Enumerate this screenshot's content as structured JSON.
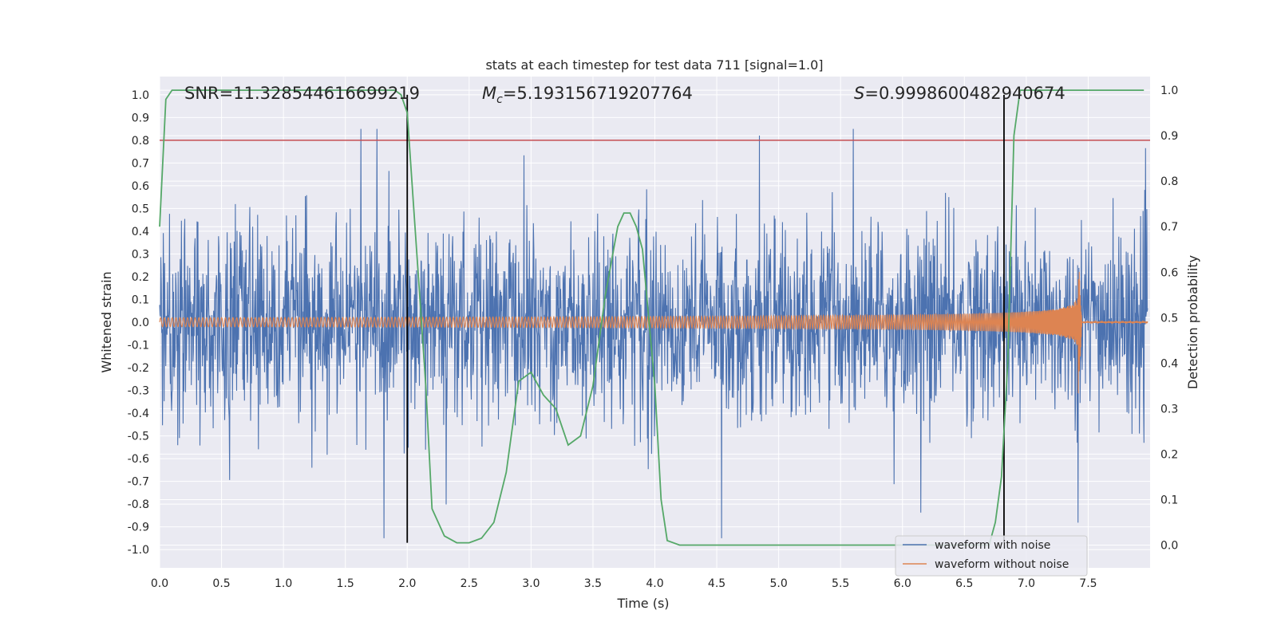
{
  "chart_data": {
    "type": "line",
    "title": "stats at each timestep for test data 711 [signal=1.0]",
    "xlabel": "Time (s)",
    "ylabel": "Whitened strain",
    "ylabel_right": "Detection probability",
    "xlim": [
      0.0,
      8.0
    ],
    "ylim": [
      -1.08,
      1.08
    ],
    "ylim_right": [
      -0.05,
      1.03
    ],
    "x_ticks": [
      0.0,
      0.5,
      1.0,
      1.5,
      2.0,
      2.5,
      3.0,
      3.5,
      4.0,
      4.5,
      5.0,
      5.5,
      6.0,
      6.5,
      7.0,
      7.5
    ],
    "x_tick_labels": [
      "0.0",
      "0.5",
      "1.0",
      "1.5",
      "2.0",
      "2.5",
      "3.0",
      "3.5",
      "4.0",
      "4.5",
      "5.0",
      "5.5",
      "6.0",
      "6.5",
      "7.0",
      "7.5"
    ],
    "y_ticks": [
      1.0,
      0.9,
      0.8,
      0.7,
      0.6,
      0.5,
      0.4,
      0.3,
      0.2,
      0.1,
      0.0,
      -0.1,
      -0.2,
      -0.3,
      -0.4,
      -0.5,
      -0.6,
      -0.7,
      -0.8,
      -0.9,
      -1.0
    ],
    "y_tick_labels": [
      "1.0",
      "0.9",
      "0.8",
      "0.7",
      "0.6",
      "0.5",
      "0.4",
      "0.3",
      "0.2",
      "0.1",
      "0.0",
      "-0.1",
      "-0.2",
      "-0.3",
      "-0.4",
      "-0.5",
      "-0.6",
      "-0.7",
      "-0.8",
      "-0.9",
      "-1.0"
    ],
    "y_right_ticks": [
      1.0,
      0.9,
      0.8,
      0.7,
      0.6,
      0.5,
      0.4,
      0.3,
      0.2,
      0.1,
      0.0
    ],
    "y_right_tick_labels": [
      "1.0",
      "0.9",
      "0.8",
      "0.7",
      "0.6",
      "0.5",
      "0.4",
      "0.3",
      "0.2",
      "0.1",
      "0.0"
    ],
    "grid": true,
    "annotations": {
      "snr": "SNR=11.328544616699219",
      "mc_symbol": "M",
      "mc_sub": "c",
      "mc_value": "=5.193156719207764",
      "s_symbol": "S",
      "s_value": "=0.9998600482940674"
    },
    "threshold_line": {
      "y": 0.8,
      "color": "#c44e52"
    },
    "vertical_lines": [
      2.0,
      6.82
    ],
    "series": [
      {
        "name": "waveform with noise",
        "color": "#4c72b0",
        "axis": "left",
        "description_envelope_max": 0.85,
        "description_envelope_min": -0.95
      },
      {
        "name": "waveform without noise",
        "color": "#dd8452",
        "axis": "left",
        "chirp_start_amp": 0.02,
        "chirp_peak_amp": 0.33,
        "chirp_peak_time": 7.42,
        "chirp_end_time": 7.45
      },
      {
        "name": "detection probability",
        "color": "#55a868",
        "axis": "right",
        "x": [
          0.0,
          0.05,
          0.1,
          0.2,
          1.0,
          1.9,
          1.95,
          2.0,
          2.05,
          2.1,
          2.15,
          2.2,
          2.3,
          2.4,
          2.5,
          2.6,
          2.7,
          2.8,
          2.9,
          3.0,
          3.1,
          3.2,
          3.3,
          3.4,
          3.5,
          3.6,
          3.7,
          3.75,
          3.8,
          3.85,
          3.9,
          4.0,
          4.05,
          4.1,
          4.2,
          5.0,
          6.0,
          6.5,
          6.7,
          6.75,
          6.8,
          6.85,
          6.9,
          6.95,
          7.0,
          7.5,
          7.95
        ],
        "y": [
          0.7,
          0.98,
          1.0,
          1.0,
          1.0,
          1.0,
          0.99,
          0.95,
          0.75,
          0.55,
          0.35,
          0.08,
          0.02,
          0.005,
          0.005,
          0.015,
          0.05,
          0.16,
          0.36,
          0.38,
          0.33,
          0.3,
          0.22,
          0.24,
          0.35,
          0.55,
          0.7,
          0.73,
          0.73,
          0.7,
          0.65,
          0.35,
          0.1,
          0.01,
          0.0,
          0.0,
          0.0,
          0.0,
          0.0,
          0.05,
          0.15,
          0.4,
          0.9,
          1.0,
          1.0,
          1.0,
          1.0
        ]
      }
    ],
    "legend": {
      "placement": "lower-right",
      "entries": [
        "waveform with noise",
        "waveform without noise"
      ]
    }
  }
}
